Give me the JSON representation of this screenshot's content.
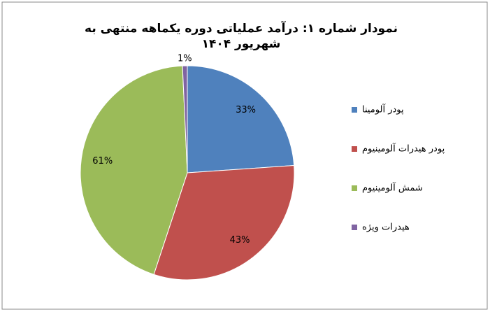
{
  "chart_data": {
    "type": "pie",
    "title": "نمودار شماره ۱: درآمد عملیاتی دوره یکماهه منتهی به شهریور ۱۴۰۴",
    "categories": [
      "پودر آلومینا",
      "پودر هیدرات آلومینیوم",
      "شمش آلومینیوم",
      "هیدرات ویژه"
    ],
    "values": [
      33,
      43,
      61,
      1
    ],
    "value_labels": [
      "33%",
      "43%",
      "61%",
      "1%"
    ],
    "colors": [
      "#4f81bd",
      "#c0504d",
      "#9bbb59",
      "#8064a2"
    ],
    "legend": "right"
  }
}
